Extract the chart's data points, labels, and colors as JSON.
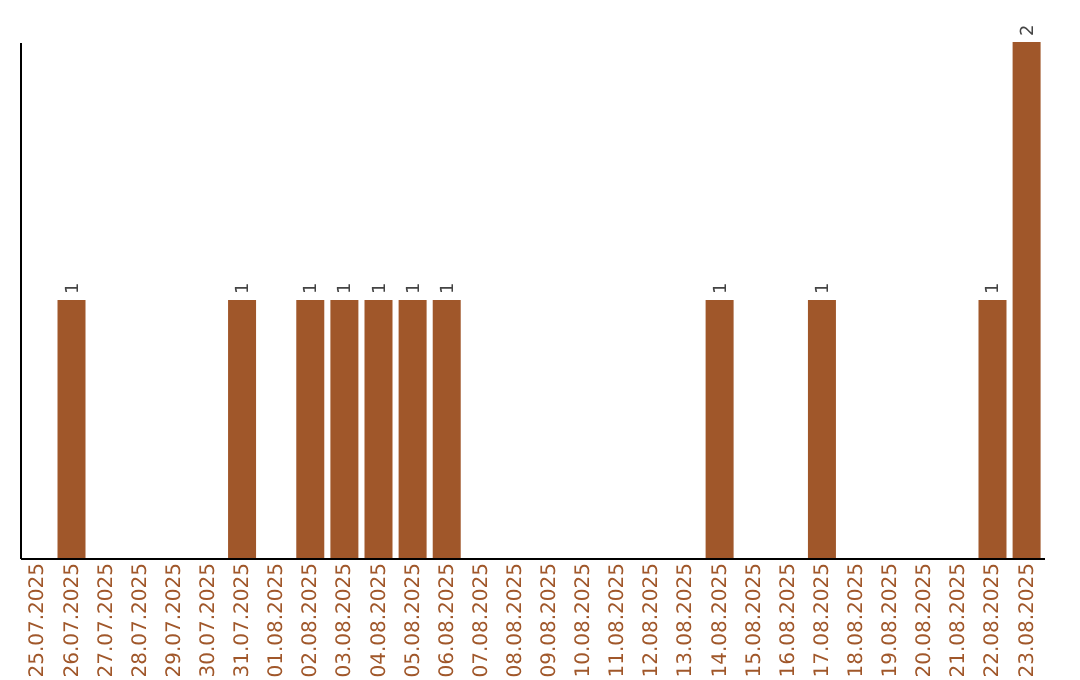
{
  "chart_data": {
    "type": "bar",
    "categories": [
      "25.07.2025",
      "26.07.2025",
      "27.07.2025",
      "28.07.2025",
      "29.07.2025",
      "30.07.2025",
      "31.07.2025",
      "01.08.2025",
      "02.08.2025",
      "03.08.2025",
      "04.08.2025",
      "05.08.2025",
      "06.08.2025",
      "07.08.2025",
      "08.08.2025",
      "09.08.2025",
      "10.08.2025",
      "11.08.2025",
      "12.08.2025",
      "13.08.2025",
      "14.08.2025",
      "15.08.2025",
      "16.08.2025",
      "17.08.2025",
      "18.08.2025",
      "19.08.2025",
      "20.08.2025",
      "21.08.2025",
      "22.08.2025",
      "23.08.2025"
    ],
    "values": [
      0,
      1,
      0,
      0,
      0,
      0,
      1,
      0,
      1,
      1,
      1,
      1,
      1,
      0,
      0,
      0,
      0,
      0,
      0,
      0,
      1,
      0,
      0,
      1,
      0,
      0,
      0,
      0,
      1,
      2
    ],
    "value_labels": [
      null,
      "1",
      null,
      null,
      null,
      null,
      "1",
      null,
      "1",
      "1",
      "1",
      "1",
      "1",
      null,
      null,
      null,
      null,
      null,
      null,
      null,
      "1",
      null,
      null,
      "1",
      null,
      null,
      null,
      null,
      "1",
      "2"
    ],
    "color": "#a0572a",
    "tick_labels": "x",
    "grid": false
  }
}
